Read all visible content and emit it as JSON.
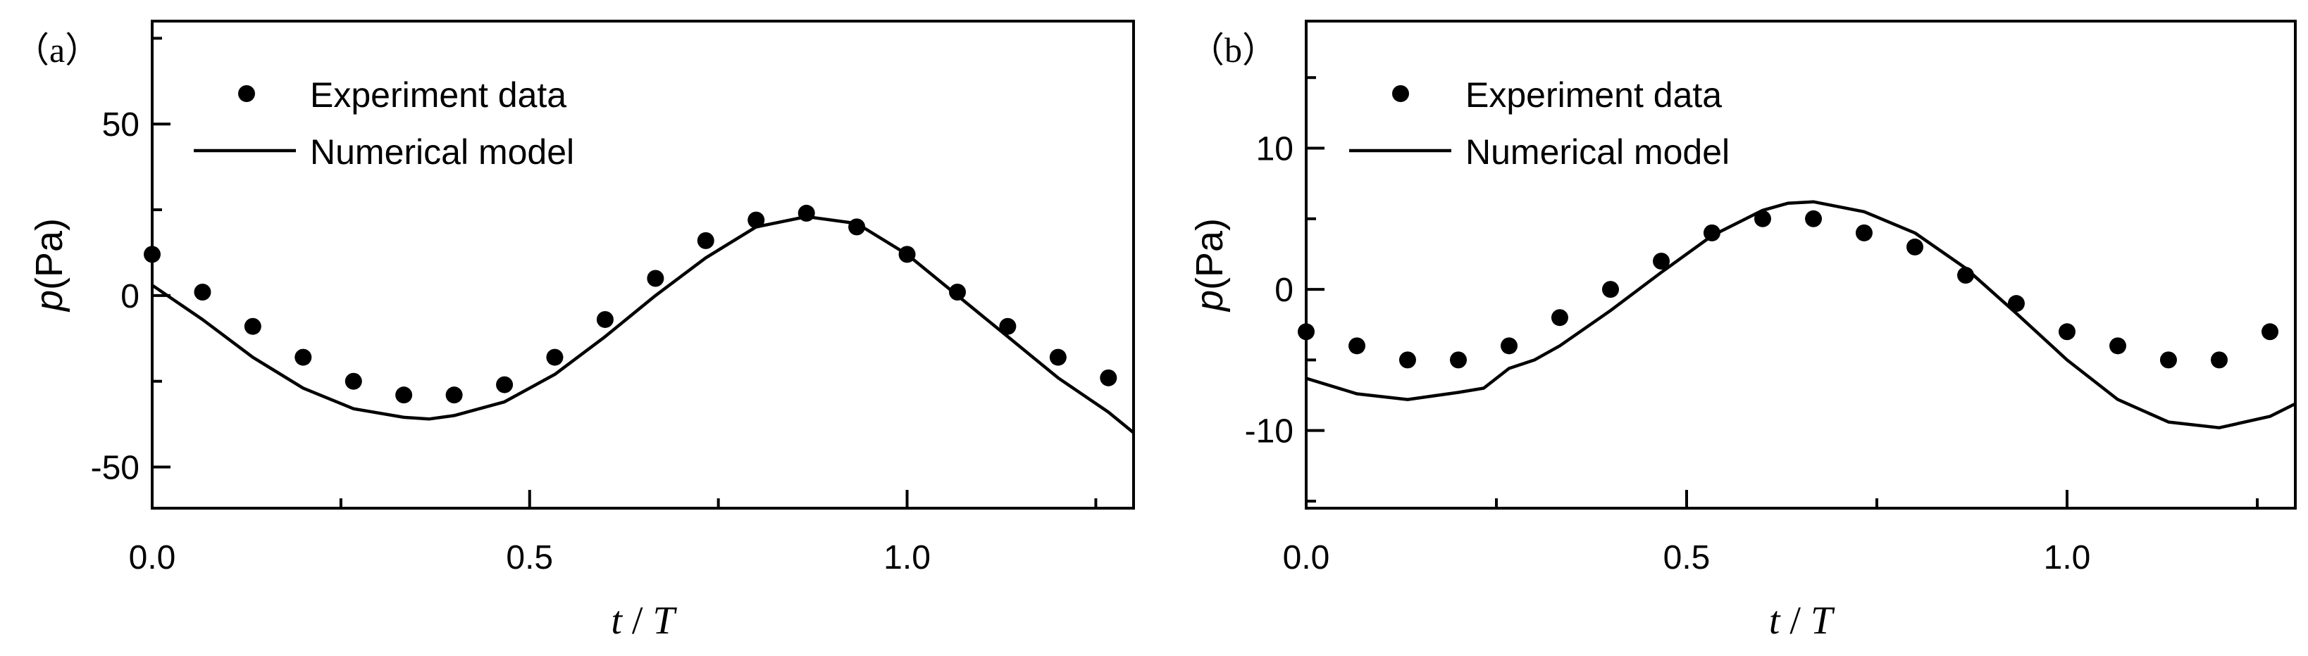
{
  "chart_data": [
    {
      "type": "line",
      "panel_label": "（a）",
      "xlabel_t": "t",
      "xlabel_sep": " / ",
      "xlabel_T": "T",
      "ylabel_p": "p",
      "ylabel_unit": "(Pa)",
      "xlim": [
        0,
        1.3
      ],
      "ylim": [
        -62,
        80
      ],
      "x_ticks": [
        0.0,
        0.5,
        1.0
      ],
      "x_tick_labels": [
        "0.0",
        "0.5",
        "1.0"
      ],
      "y_ticks": [
        50,
        0,
        -50
      ],
      "y_tick_labels": [
        "50",
        "0",
        "-50"
      ],
      "legend_position": "top-left",
      "grid": false,
      "series": [
        {
          "name": "Experiment data",
          "kind": "scatter",
          "x": [
            0.0,
            0.0667,
            0.1333,
            0.2,
            0.2667,
            0.3333,
            0.4,
            0.4667,
            0.5333,
            0.6,
            0.6667,
            0.7333,
            0.8,
            0.8667,
            0.9333,
            1.0,
            1.0667,
            1.1333,
            1.2,
            1.2667
          ],
          "y": [
            12,
            1,
            -9,
            -18,
            -25,
            -29,
            -29,
            -26,
            -18,
            -7,
            5,
            16,
            22,
            24,
            20,
            12,
            1,
            -9,
            -18,
            -24
          ]
        },
        {
          "name": "Numerical model",
          "kind": "line",
          "x": [
            0.0,
            0.0667,
            0.1333,
            0.2,
            0.2667,
            0.3333,
            0.3667,
            0.4,
            0.4667,
            0.5333,
            0.6,
            0.6667,
            0.7333,
            0.8,
            0.8667,
            0.9333,
            1.0,
            1.0667,
            1.1333,
            1.2,
            1.2667,
            1.3
          ],
          "y": [
            3,
            -7,
            -18,
            -27,
            -33,
            -35.5,
            -36,
            -35,
            -31,
            -23,
            -12,
            0,
            11,
            20,
            23,
            21,
            12,
            0,
            -12,
            -24,
            -34,
            -40
          ]
        }
      ]
    },
    {
      "type": "line",
      "panel_label": "（b）",
      "xlabel_t": "t",
      "xlabel_sep": " / ",
      "xlabel_T": "T",
      "ylabel_p": "p",
      "ylabel_unit": "(Pa)",
      "xlim": [
        0,
        1.3
      ],
      "ylim": [
        -15.5,
        19
      ],
      "x_ticks": [
        0.0,
        0.5,
        1.0
      ],
      "x_tick_labels": [
        "0.0",
        "0.5",
        "1.0"
      ],
      "y_ticks": [
        10,
        0,
        -10
      ],
      "y_tick_labels": [
        "10",
        "0",
        "-10"
      ],
      "legend_position": "top-left",
      "grid": false,
      "series": [
        {
          "name": "Experiment data",
          "kind": "scatter",
          "x": [
            0.0,
            0.0667,
            0.1333,
            0.2,
            0.2667,
            0.3333,
            0.4,
            0.4667,
            0.5333,
            0.6,
            0.6667,
            0.7333,
            0.8,
            0.8667,
            0.9333,
            1.0,
            1.0667,
            1.1333,
            1.2,
            1.2667
          ],
          "y": [
            -3,
            -4,
            -5,
            -5,
            -4,
            -2,
            0,
            2,
            4,
            5,
            5,
            4,
            3,
            1,
            -1,
            -3,
            -4,
            -5,
            -5,
            -3
          ]
        },
        {
          "name": "Numerical model",
          "kind": "line",
          "x": [
            0.0,
            0.0667,
            0.1333,
            0.2,
            0.2333,
            0.2667,
            0.3,
            0.3333,
            0.4,
            0.4667,
            0.5333,
            0.6,
            0.6333,
            0.6667,
            0.7333,
            0.8,
            0.8667,
            0.9333,
            1.0,
            1.0667,
            1.1333,
            1.2,
            1.2667,
            1.3
          ],
          "y": [
            -6.3,
            -7.4,
            -7.8,
            -7.3,
            -7.0,
            -5.6,
            -5.0,
            -4.0,
            -1.5,
            1.2,
            3.8,
            5.6,
            6.1,
            6.2,
            5.5,
            4.0,
            1.5,
            -1.7,
            -5.0,
            -7.8,
            -9.4,
            -9.8,
            -9.0,
            -8.1
          ]
        }
      ]
    }
  ]
}
